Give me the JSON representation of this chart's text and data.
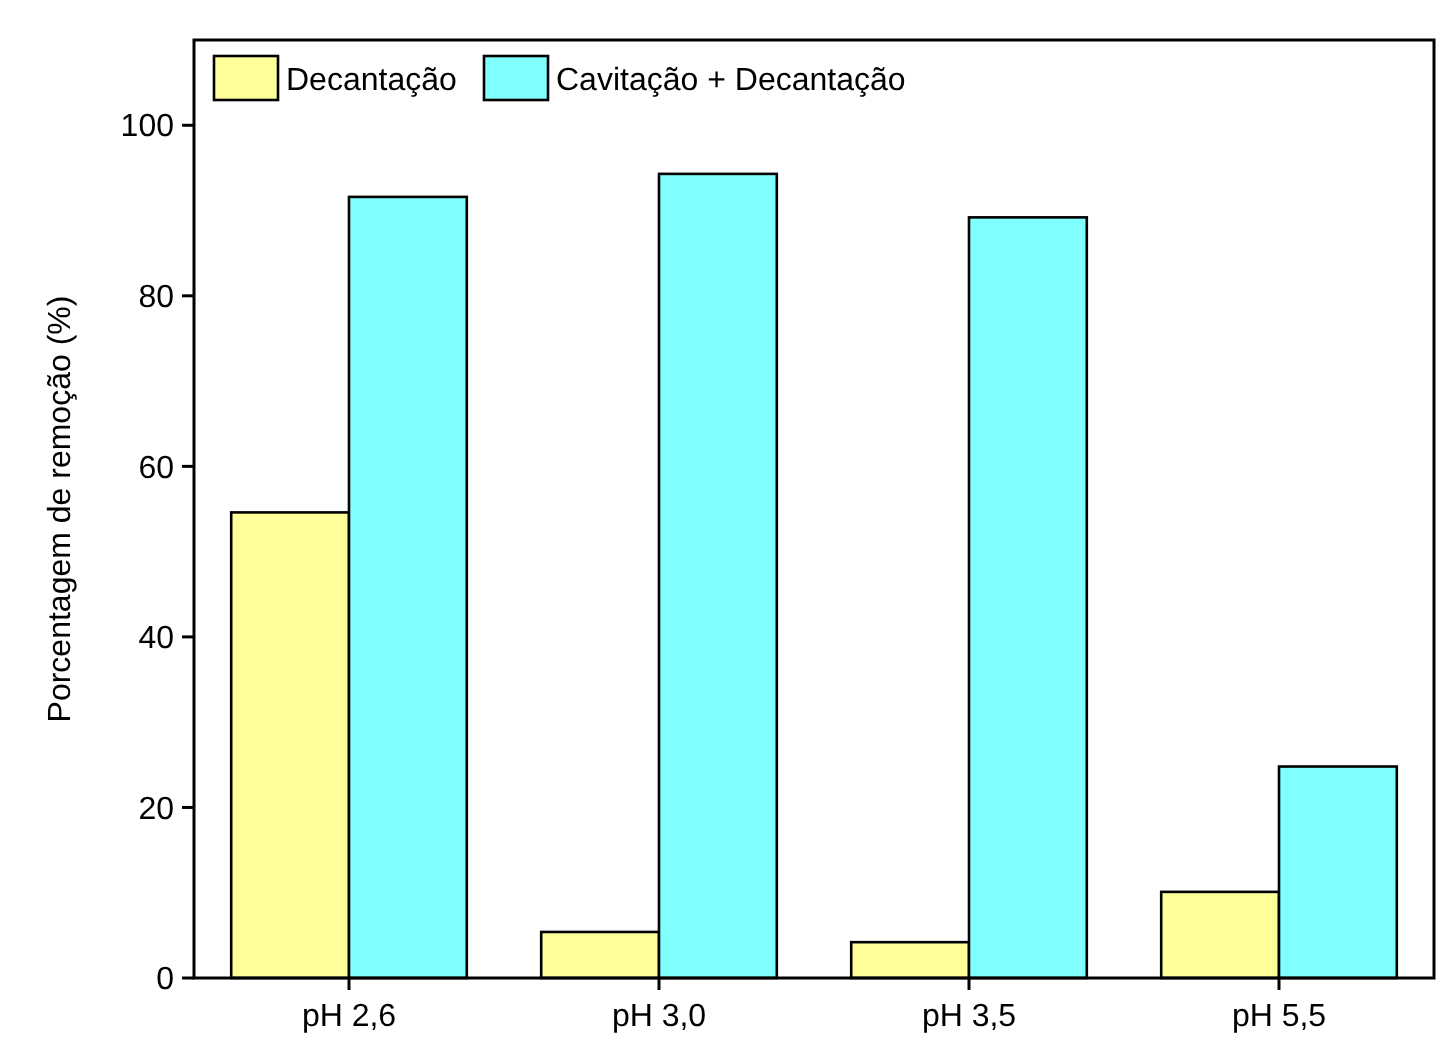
{
  "chart_data": {
    "type": "bar",
    "ylabel": "Porcentagem de remoção (%)",
    "categories": [
      "pH 2,6",
      "pH 3,0",
      "pH 3,5",
      "pH 5,5"
    ],
    "series": [
      {
        "name": "Decantação",
        "color": "#ffff99",
        "values": [
          54.6,
          5.4,
          4.2,
          10.1
        ]
      },
      {
        "name": "Cavitação + Decantação",
        "color": "#80ffff",
        "values": [
          91.6,
          94.3,
          89.2,
          24.8
        ]
      }
    ],
    "ylim": [
      0,
      110
    ],
    "yticks": [
      0,
      20,
      40,
      60,
      80,
      100
    ],
    "grid": false,
    "legend": "top left"
  }
}
